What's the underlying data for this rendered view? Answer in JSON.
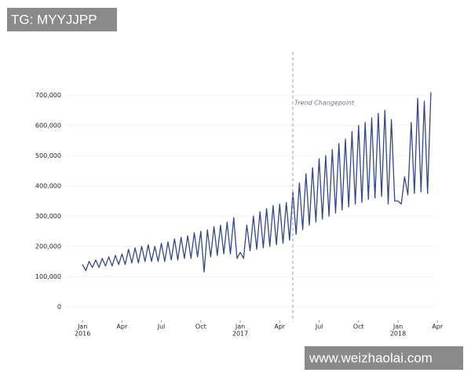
{
  "watermarks": [
    "TG: MYYJJPP",
    "www.weizhaolai.com"
  ],
  "chart_data": {
    "type": "line",
    "x": [
      0,
      0.25,
      0.5,
      0.75,
      1,
      1.25,
      1.5,
      1.75,
      2,
      2.25,
      2.5,
      2.75,
      3,
      3.25,
      3.5,
      3.75,
      4,
      4.25,
      4.5,
      4.75,
      5,
      5.25,
      5.5,
      5.75,
      6,
      6.25,
      6.5,
      6.75,
      7,
      7.25,
      7.5,
      7.75,
      8,
      8.25,
      8.5,
      8.75,
      9,
      9.25,
      9.5,
      9.75,
      10,
      10.25,
      10.5,
      10.75,
      11,
      11.25,
      11.5,
      11.75,
      12,
      12.25,
      12.5,
      12.75,
      13,
      13.25,
      13.5,
      13.75,
      14,
      14.25,
      14.5,
      14.75,
      15,
      15.25,
      15.5,
      15.75,
      16,
      16.25,
      16.5,
      16.75,
      17,
      17.25,
      17.5,
      17.75,
      18,
      18.25,
      18.5,
      18.75,
      19,
      19.25,
      19.5,
      19.75,
      20,
      20.25,
      20.5,
      20.75,
      21,
      21.25,
      21.5,
      21.75,
      22,
      22.25,
      22.5,
      22.75,
      23,
      23.25,
      23.5,
      23.75,
      24,
      24.25,
      24.5,
      24.75,
      25,
      25.25,
      25.5,
      25.75,
      26,
      26.25,
      26.5
    ],
    "series": [
      {
        "color": "#34497f",
        "values": [
          140000,
          120000,
          150000,
          130000,
          155000,
          130000,
          160000,
          135000,
          165000,
          135000,
          170000,
          140000,
          175000,
          140000,
          190000,
          145000,
          195000,
          145000,
          200000,
          150000,
          205000,
          150000,
          200000,
          150000,
          210000,
          150000,
          215000,
          155000,
          225000,
          155000,
          230000,
          160000,
          235000,
          160000,
          245000,
          165000,
          250000,
          115000,
          255000,
          165000,
          265000,
          170000,
          270000,
          175000,
          280000,
          175000,
          295000,
          160000,
          180000,
          160000,
          270000,
          185000,
          300000,
          190000,
          315000,
          195000,
          325000,
          200000,
          335000,
          205000,
          340000,
          210000,
          345000,
          220000,
          380000,
          240000,
          410000,
          255000,
          440000,
          270000,
          460000,
          280000,
          490000,
          290000,
          500000,
          300000,
          520000,
          310000,
          540000,
          320000,
          555000,
          330000,
          580000,
          340000,
          600000,
          345000,
          610000,
          355000,
          625000,
          360000,
          640000,
          365000,
          650000,
          340000,
          620000,
          350000,
          350000,
          340000,
          430000,
          370000,
          610000,
          375000,
          690000,
          380000,
          680000,
          375000,
          710000
        ]
      }
    ],
    "xlim": [
      -1.5,
      28
    ],
    "xticks": [
      {
        "value": 0,
        "label": "Jan"
      },
      {
        "value": 3,
        "label": "Apr"
      },
      {
        "value": 6,
        "label": "Jul"
      },
      {
        "value": 9,
        "label": "Oct"
      },
      {
        "value": 12,
        "label": "Jan"
      },
      {
        "value": 15,
        "label": "Apr"
      },
      {
        "value": 18,
        "label": "Jul"
      },
      {
        "value": 21,
        "label": "Oct"
      },
      {
        "value": 24,
        "label": "Jan"
      },
      {
        "value": 27,
        "label": "Apr"
      }
    ],
    "year_labels": [
      {
        "value": 0,
        "label": "2016"
      },
      {
        "value": 12,
        "label": "2017"
      },
      {
        "value": 24,
        "label": "2018"
      }
    ],
    "ylim": [
      -50000,
      750000
    ],
    "yticks": [
      0,
      {
        "value": 100000,
        "label": "100,000"
      },
      {
        "value": 200000,
        "label": "200,000"
      },
      {
        "value": 300000,
        "label": "300,000"
      },
      {
        "value": 400000,
        "label": "400,000"
      },
      {
        "value": 500000,
        "label": "500,000"
      },
      {
        "value": 600000,
        "label": "600,000"
      },
      {
        "value": 700000,
        "label": "700,000"
      }
    ],
    "grid": true,
    "annotations": [
      {
        "text": "Trend Changepoint",
        "x": 16
      }
    ]
  }
}
